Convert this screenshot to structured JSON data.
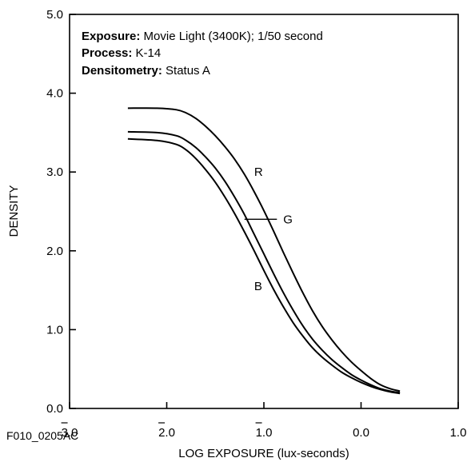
{
  "chart_data": {
    "type": "line",
    "xlabel": "LOG EXPOSURE (lux-seconds)",
    "ylabel": "DENSITY",
    "xlim": [
      -3.0,
      1.0
    ],
    "ylim": [
      0.0,
      5.0
    ],
    "x_ticks": [
      {
        "value": -3.0,
        "label": "3.0",
        "bar": true
      },
      {
        "value": -2.0,
        "label": "2.0",
        "bar": true
      },
      {
        "value": -1.0,
        "label": "1.0",
        "bar": true
      },
      {
        "value": 0.0,
        "label": "0.0",
        "bar": false
      },
      {
        "value": 1.0,
        "label": "1.0",
        "bar": false
      }
    ],
    "y_ticks": [
      {
        "value": 0.0,
        "label": "0.0"
      },
      {
        "value": 1.0,
        "label": "1.0"
      },
      {
        "value": 2.0,
        "label": "2.0"
      },
      {
        "value": 3.0,
        "label": "3.0"
      },
      {
        "value": 4.0,
        "label": "4.0"
      },
      {
        "value": 5.0,
        "label": "5.0"
      }
    ],
    "grid": false,
    "annotations": [
      {
        "key": "Exposure:",
        "text": " Movie Light (3400K); 1/50 second"
      },
      {
        "key": "Process:",
        "text": " K-14"
      },
      {
        "key": "Densitometry:",
        "text": " Status A"
      }
    ],
    "series": [
      {
        "name": "R",
        "color": "#000000",
        "label_at": [
          -1.1,
          3.0
        ],
        "x": [
          -2.4,
          -2.1,
          -1.9,
          -1.8,
          -1.7,
          -1.6,
          -1.5,
          -1.4,
          -1.3,
          -1.2,
          -1.1,
          -1.0,
          -0.9,
          -0.8,
          -0.7,
          -0.6,
          -0.5,
          -0.4,
          -0.3,
          -0.2,
          -0.1,
          0.0,
          0.1,
          0.2,
          0.3,
          0.4
        ],
        "y": [
          3.81,
          3.81,
          3.79,
          3.75,
          3.68,
          3.58,
          3.46,
          3.32,
          3.16,
          2.97,
          2.75,
          2.51,
          2.25,
          1.98,
          1.72,
          1.47,
          1.24,
          1.04,
          0.87,
          0.72,
          0.59,
          0.48,
          0.38,
          0.3,
          0.25,
          0.22
        ]
      },
      {
        "name": "G",
        "color": "#000000",
        "label_at": [
          -0.8,
          2.4
        ],
        "leader_to": [
          -1.2,
          2.4
        ],
        "x": [
          -2.4,
          -2.1,
          -1.9,
          -1.8,
          -1.7,
          -1.6,
          -1.5,
          -1.4,
          -1.3,
          -1.2,
          -1.1,
          -1.0,
          -0.9,
          -0.8,
          -0.7,
          -0.6,
          -0.5,
          -0.4,
          -0.3,
          -0.2,
          -0.1,
          0.0,
          0.1,
          0.2,
          0.3,
          0.4
        ],
        "y": [
          3.51,
          3.5,
          3.46,
          3.4,
          3.31,
          3.19,
          3.05,
          2.88,
          2.68,
          2.46,
          2.21,
          1.96,
          1.71,
          1.47,
          1.25,
          1.05,
          0.88,
          0.74,
          0.62,
          0.52,
          0.43,
          0.36,
          0.3,
          0.25,
          0.22,
          0.2
        ]
      },
      {
        "name": "B",
        "color": "#000000",
        "label_at": [
          -1.1,
          1.55
        ],
        "x": [
          -2.4,
          -2.1,
          -1.9,
          -1.8,
          -1.7,
          -1.6,
          -1.5,
          -1.4,
          -1.3,
          -1.2,
          -1.1,
          -1.0,
          -0.9,
          -0.8,
          -0.7,
          -0.6,
          -0.5,
          -0.4,
          -0.3,
          -0.2,
          -0.1,
          0.0,
          0.1,
          0.2,
          0.3,
          0.4
        ],
        "y": [
          3.42,
          3.4,
          3.35,
          3.28,
          3.17,
          3.03,
          2.87,
          2.68,
          2.47,
          2.24,
          2.0,
          1.75,
          1.51,
          1.29,
          1.09,
          0.92,
          0.77,
          0.65,
          0.55,
          0.46,
          0.39,
          0.33,
          0.28,
          0.24,
          0.21,
          0.19
        ]
      }
    ]
  },
  "figure_id": "F010_0205AC"
}
